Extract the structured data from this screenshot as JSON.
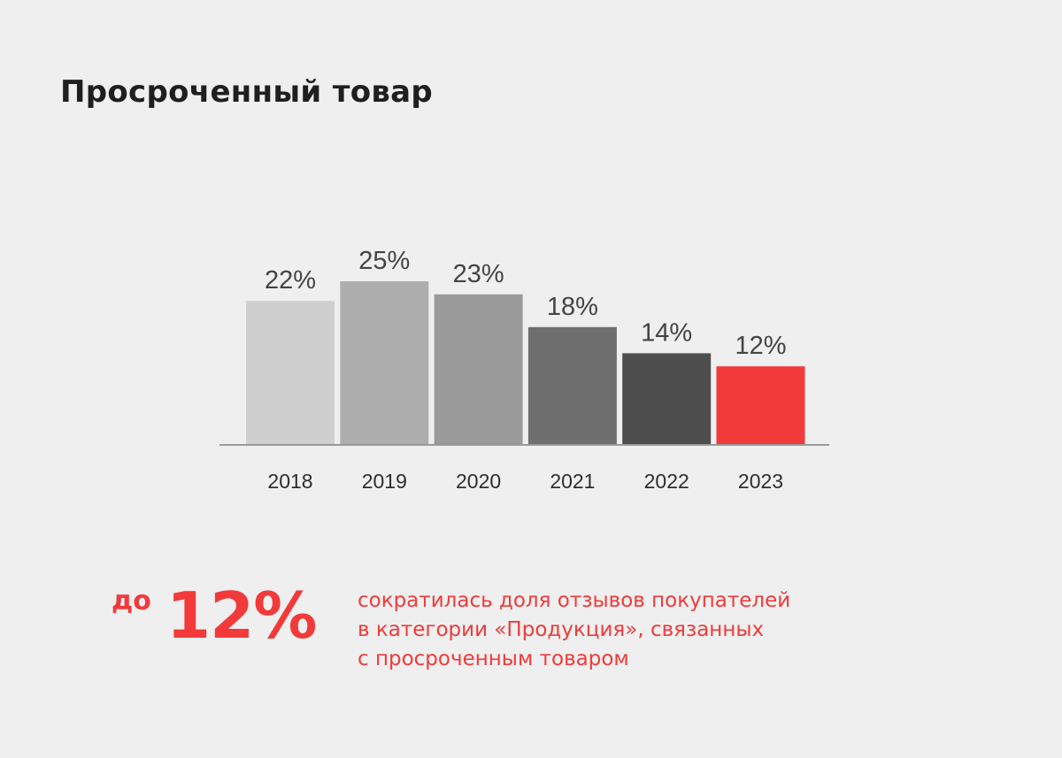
{
  "page": {
    "title": "Просроченный товар"
  },
  "chart_data": {
    "type": "bar",
    "categories": [
      "2018",
      "2019",
      "2020",
      "2021",
      "2022",
      "2023"
    ],
    "values": [
      22,
      25,
      23,
      18,
      14,
      12
    ],
    "value_labels": [
      "22%",
      "25%",
      "23%",
      "18%",
      "14%",
      "12%"
    ],
    "unit": "%",
    "colors": [
      "#cfcfcf",
      "#aeaeae",
      "#9a9a9a",
      "#6e6e6e",
      "#4d4d4d",
      "#f23a3a"
    ],
    "axis_color": "#9a9a9a",
    "ylim": [
      0,
      25
    ],
    "grid": false,
    "legend": "none",
    "title": "",
    "xlabel": "",
    "ylabel": ""
  },
  "highlight": {
    "prefix": "до",
    "value": "12%",
    "text_lines": [
      "сократилась доля отзывов покупателей",
      "в категории «Продукция», связанных",
      "с просроченным товаром"
    ],
    "color": "#f23a3a"
  }
}
